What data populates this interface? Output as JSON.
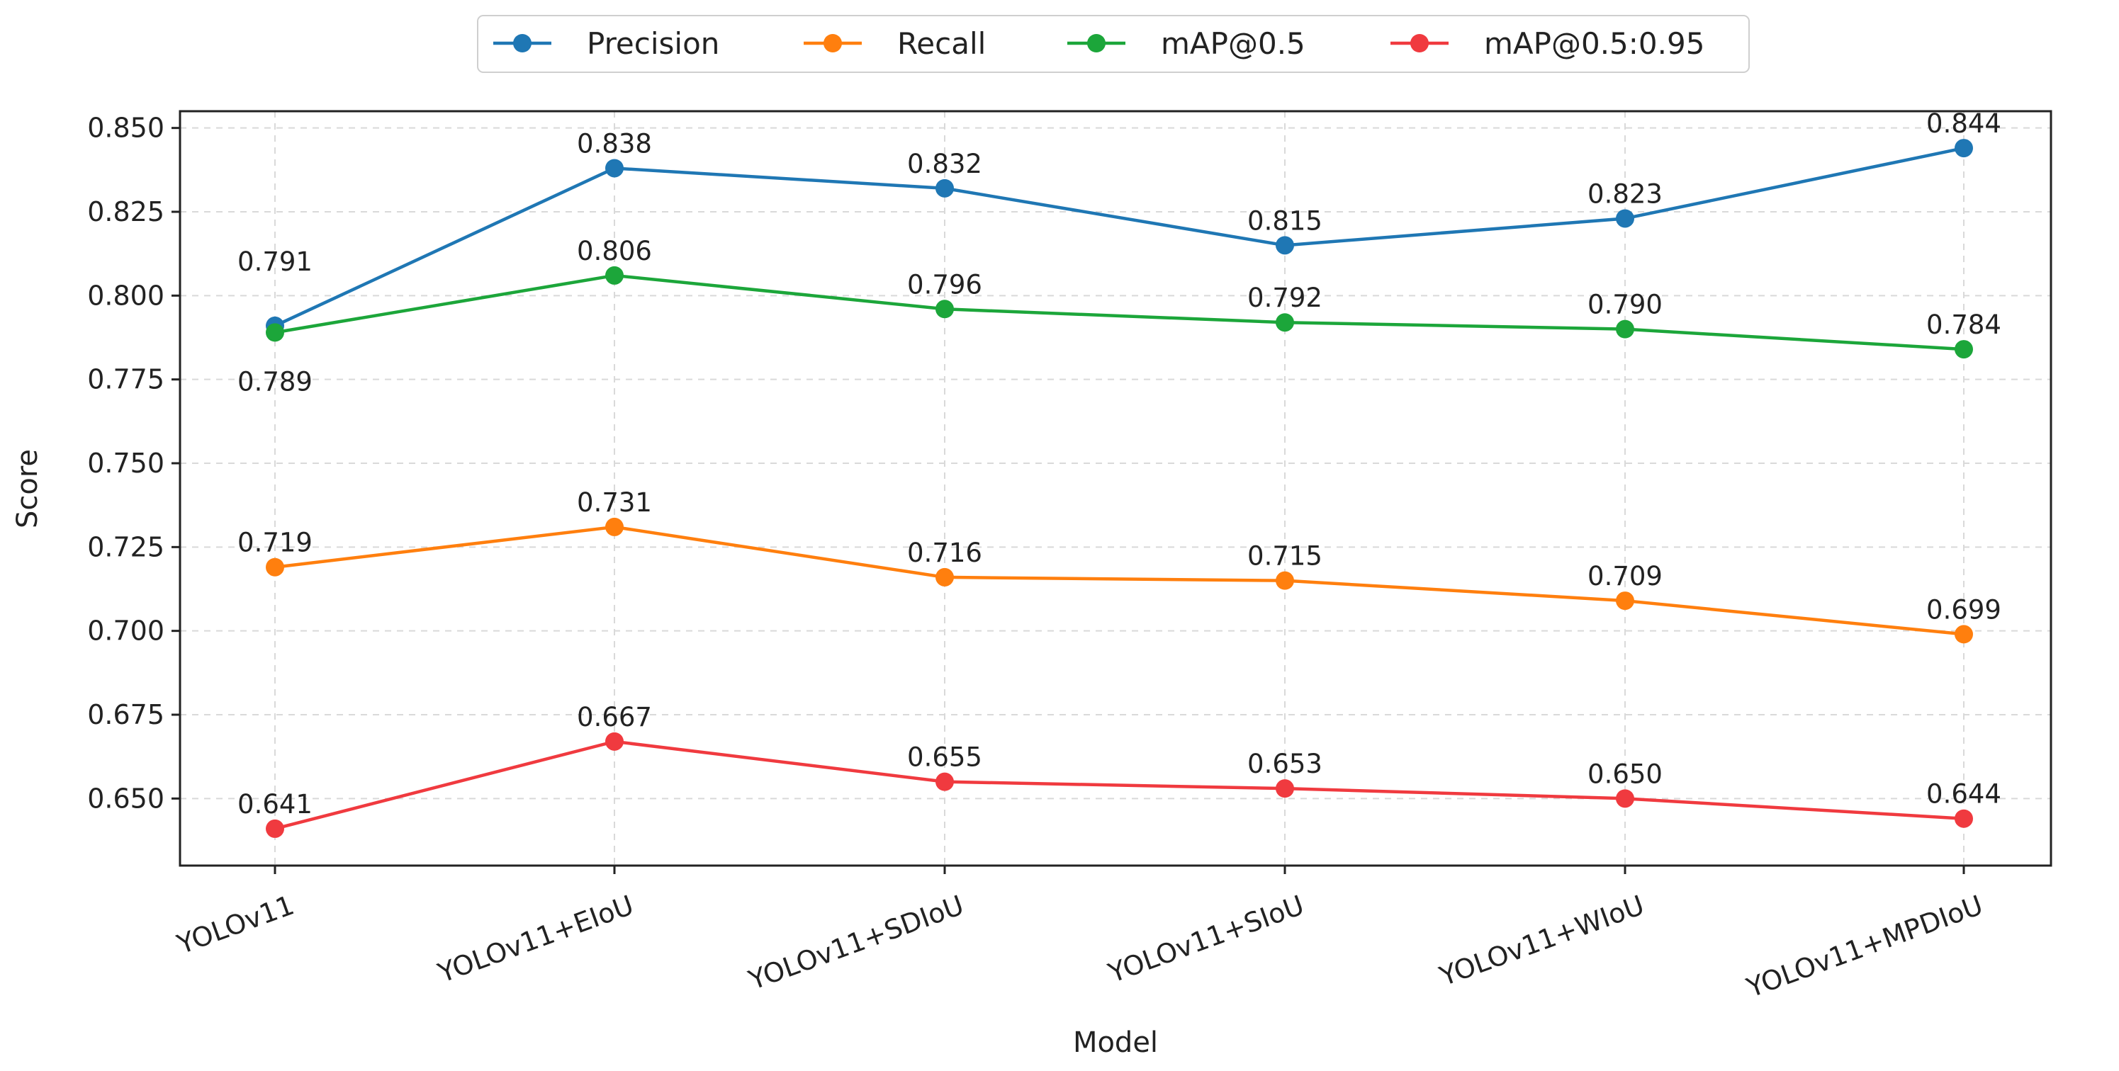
{
  "chart_data": {
    "type": "line",
    "title": "",
    "xlabel": "Model",
    "ylabel": "Score",
    "categories": [
      "YOLOv11",
      "YOLOv11+EIoU",
      "YOLOv11+SDIoU",
      "YOLOv11+SIoU",
      "YOLOv11+WIoU",
      "YOLOv11+MPDIoU"
    ],
    "ylim": [
      0.63,
      0.855
    ],
    "yticks": [
      0.65,
      0.675,
      0.7,
      0.725,
      0.75,
      0.775,
      0.8,
      0.825,
      0.85
    ],
    "ytick_labels": [
      "0.650",
      "0.675",
      "0.700",
      "0.725",
      "0.750",
      "0.775",
      "0.800",
      "0.825",
      "0.850"
    ],
    "grid": true,
    "legend_position": "top-center",
    "series": [
      {
        "name": "Precision",
        "color": "#1f77b4",
        "values": [
          0.791,
          0.838,
          0.832,
          0.815,
          0.823,
          0.844
        ],
        "labels": [
          "0.791",
          "0.838",
          "0.832",
          "0.815",
          "0.823",
          "0.844"
        ]
      },
      {
        "name": "Recall",
        "color": "#ff7f0e",
        "values": [
          0.719,
          0.731,
          0.716,
          0.715,
          0.709,
          0.699
        ],
        "labels": [
          "0.719",
          "0.731",
          "0.716",
          "0.715",
          "0.709",
          "0.699"
        ]
      },
      {
        "name": "mAP@0.5",
        "color": "#1ca63a",
        "values": [
          0.789,
          0.806,
          0.796,
          0.792,
          0.79,
          0.784
        ],
        "labels": [
          "0.789",
          "0.806",
          "0.796",
          "0.792",
          "0.790",
          "0.784"
        ]
      },
      {
        "name": "mAP@0.5:0.95",
        "color": "#f03a3f",
        "values": [
          0.641,
          0.667,
          0.655,
          0.653,
          0.65,
          0.644
        ],
        "labels": [
          "0.641",
          "0.667",
          "0.655",
          "0.653",
          "0.650",
          "0.644"
        ]
      }
    ]
  }
}
